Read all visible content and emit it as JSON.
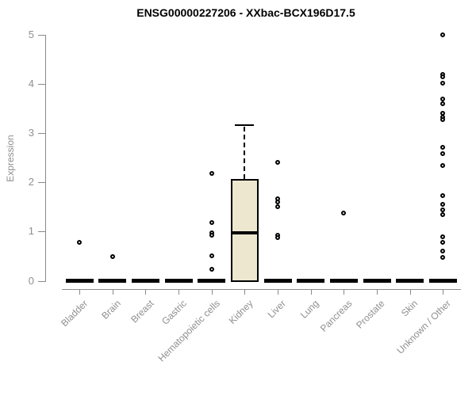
{
  "chart_data": {
    "type": "boxplot",
    "title": "ENSG00000227206 - XXbac-BCX196D17.5",
    "ylabel": "Expression",
    "xlabel": "",
    "ylim": [
      0,
      5
    ],
    "yticks": [
      0,
      1,
      2,
      3,
      4,
      5
    ],
    "grid": "off",
    "legend": "none",
    "categories": [
      "Bladder",
      "Brain",
      "Breast",
      "Gastric",
      "Hematopoietic cells",
      "Kidney",
      "Liver",
      "Lung",
      "Pancreas",
      "Prostate",
      "Skin",
      "Unknown / Other"
    ],
    "series": [
      {
        "category": "Bladder",
        "min": 0,
        "q1": 0,
        "median": 0,
        "q3": 0,
        "max": 0,
        "outliers": [
          0.78
        ]
      },
      {
        "category": "Brain",
        "min": 0,
        "q1": 0,
        "median": 0,
        "q3": 0,
        "max": 0,
        "outliers": [
          0.49
        ]
      },
      {
        "category": "Breast",
        "min": 0,
        "q1": 0,
        "median": 0,
        "q3": 0,
        "max": 0,
        "outliers": []
      },
      {
        "category": "Gastric",
        "min": 0,
        "q1": 0,
        "median": 0,
        "q3": 0,
        "max": 0,
        "outliers": []
      },
      {
        "category": "Hematopoietic cells",
        "min": 0,
        "q1": 0,
        "median": 0,
        "q3": 0,
        "max": 0,
        "outliers": [
          2.19,
          1.19,
          0.97,
          0.92,
          0.51,
          0.23
        ]
      },
      {
        "category": "Kidney",
        "min": 0,
        "q1": 0,
        "median": 0.98,
        "q3": 2.03,
        "max": 3.17,
        "outliers": []
      },
      {
        "category": "Liver",
        "min": 0,
        "q1": 0,
        "median": 0,
        "q3": 0,
        "max": 0,
        "outliers": [
          2.41,
          1.67,
          1.6,
          1.5,
          0.93,
          0.87
        ]
      },
      {
        "category": "Lung",
        "min": 0,
        "q1": 0,
        "median": 0,
        "q3": 0,
        "max": 0,
        "outliers": []
      },
      {
        "category": "Pancreas",
        "min": 0,
        "q1": 0,
        "median": 0,
        "q3": 0,
        "max": 0,
        "outliers": [
          1.37
        ]
      },
      {
        "category": "Prostate",
        "min": 0,
        "q1": 0,
        "median": 0,
        "q3": 0,
        "max": 0,
        "outliers": []
      },
      {
        "category": "Skin",
        "min": 0,
        "q1": 0,
        "median": 0,
        "q3": 0,
        "max": 0,
        "outliers": []
      },
      {
        "category": "Unknown / Other",
        "min": 0,
        "q1": 0,
        "median": 0,
        "q3": 0,
        "max": 0,
        "outliers": [
          5.0,
          4.2,
          4.14,
          4.02,
          3.7,
          3.6,
          3.4,
          3.33,
          3.27,
          2.72,
          2.59,
          2.34,
          1.73,
          1.56,
          1.44,
          1.35,
          0.9,
          0.78,
          0.6,
          0.48
        ]
      }
    ],
    "colors": {
      "box_fill": "#ECE7CE",
      "box_border": "#000000",
      "median": "#000000",
      "outlier_border": "#000000",
      "outlier_fill": "#FFFFFF",
      "axis": "#8A8A8A",
      "tick_label": "#8F8F8F",
      "title": "#000000"
    }
  }
}
